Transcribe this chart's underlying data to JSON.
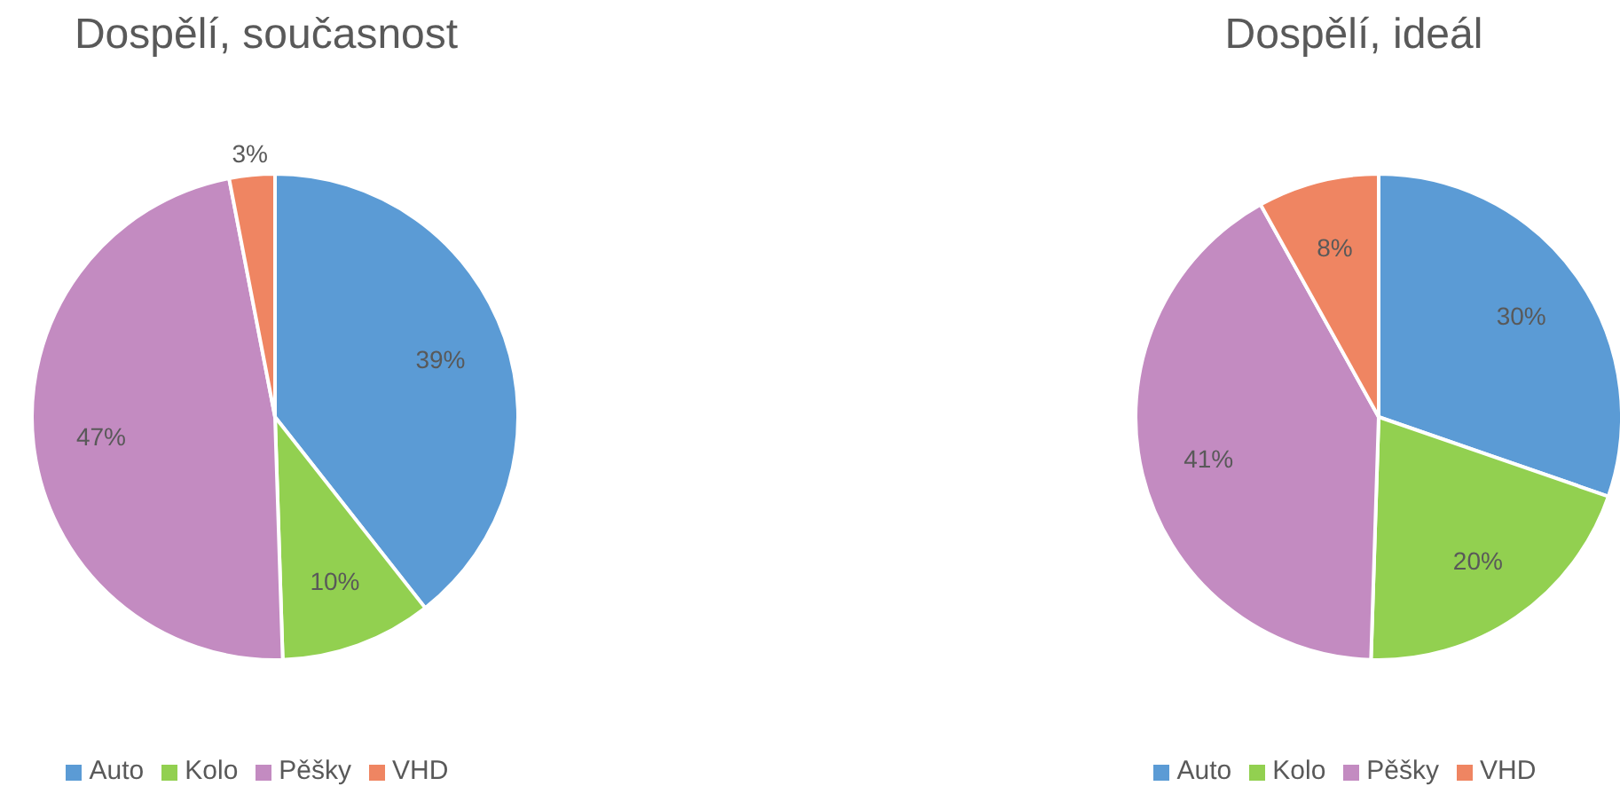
{
  "chart_data": [
    {
      "type": "pie",
      "title": "Dospělí, současnost",
      "categories": [
        "Auto",
        "Kolo",
        "Pěšky",
        "VHD"
      ],
      "values": [
        39,
        10,
        47,
        3
      ],
      "value_labels": [
        "39%",
        "10%",
        "47%",
        "3%"
      ],
      "colors": [
        "#5b9bd5",
        "#92d050",
        "#c38bc1",
        "#ef8562"
      ],
      "legend": "bottom"
    },
    {
      "type": "pie",
      "title": "Dospělí, ideál",
      "categories": [
        "Auto",
        "Kolo",
        "Pěšky",
        "VHD"
      ],
      "values": [
        30,
        20,
        41,
        8
      ],
      "value_labels": [
        "30%",
        "20%",
        "41%",
        "8%"
      ],
      "colors": [
        "#5b9bd5",
        "#92d050",
        "#c38bc1",
        "#ef8562"
      ],
      "legend": "bottom"
    }
  ]
}
